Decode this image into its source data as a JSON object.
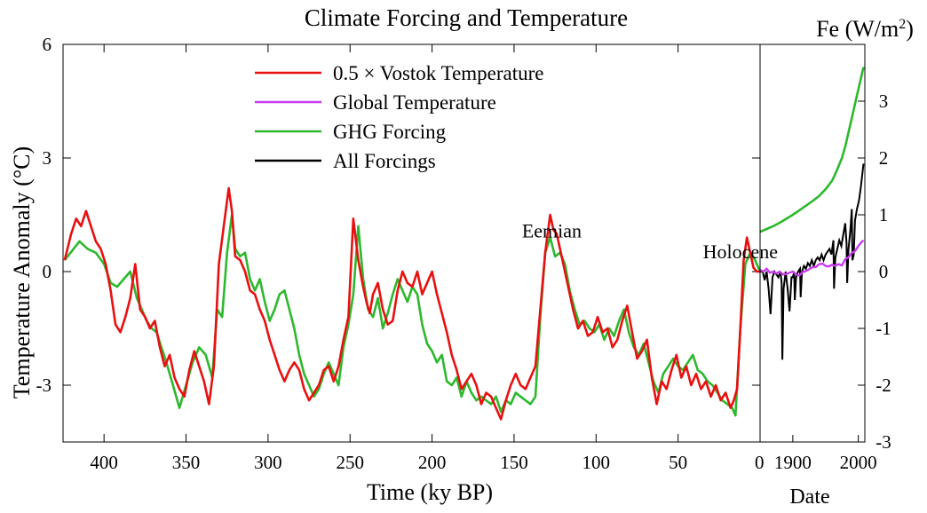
{
  "chart_data": {
    "type": "line",
    "title": "Climate Forcing and Temperature",
    "ylabel": "Temperature Anomaly (°C)",
    "ylabel_right": "Fe (W/m2)",
    "ylabel_right_main": "Fe (W/m",
    "ylabel_right_sup": "2",
    "ylabel_right_close": ")",
    "left_panel": {
      "xlabel": "Time (ky BP)",
      "xlim": [
        425,
        0
      ],
      "xticks": [
        400,
        350,
        300,
        250,
        200,
        150,
        100,
        50,
        0
      ],
      "xtick_labels": [
        "400",
        "350",
        "300",
        "250",
        "200",
        "150",
        "100",
        "50",
        "0"
      ],
      "ylim": [
        -4.5,
        6
      ],
      "yticks": [
        -3,
        0,
        3,
        6
      ],
      "ytick_labels": [
        "-3",
        "0",
        "3",
        "6"
      ]
    },
    "right_panel": {
      "xlabel": "Date",
      "xlim": [
        1850,
        2010
      ],
      "xticks": [
        1900,
        2000
      ],
      "xtick_labels": [
        "1900",
        "2000"
      ],
      "ylim": [
        -3,
        4
      ],
      "yticks": [
        -3,
        -2,
        -1,
        0,
        1,
        2,
        3
      ],
      "ytick_labels": [
        "-3",
        "-2",
        "-1",
        "0",
        "1",
        "2",
        "3"
      ]
    },
    "annotations": [
      {
        "text": "Eemian",
        "ky": 127,
        "temp": 0.9
      },
      {
        "text": "Holocene",
        "ky": 12,
        "temp": 0.35
      }
    ],
    "series": [
      {
        "name": "0.5 × Vostok Temperature",
        "color": "#e81010",
        "panel": "left",
        "x": [
          424,
          420,
          417,
          414,
          411,
          408,
          405,
          402,
          399,
          396,
          393,
          390,
          387,
          384,
          381,
          378,
          375,
          372,
          369,
          366,
          363,
          360,
          357,
          354,
          351,
          348,
          345,
          342,
          339,
          336,
          333,
          330,
          327,
          324,
          322,
          320,
          317,
          314,
          311,
          308,
          305,
          302,
          299,
          296,
          293,
          290,
          287,
          284,
          281,
          278,
          275,
          272,
          269,
          266,
          263,
          260,
          257,
          254,
          251,
          248,
          245,
          242,
          240,
          238,
          236,
          233,
          230,
          227,
          224,
          221,
          218,
          215,
          212,
          209,
          206,
          203,
          200,
          197,
          194,
          191,
          188,
          185,
          182,
          179,
          176,
          173,
          170,
          167,
          164,
          161,
          158,
          155,
          152,
          149,
          146,
          143,
          140,
          137,
          134,
          131,
          128,
          126,
          124,
          122,
          120,
          117,
          114,
          111,
          108,
          105,
          102,
          99,
          96,
          93,
          90,
          87,
          84,
          81,
          78,
          75,
          72,
          69,
          66,
          63,
          60,
          57,
          54,
          51,
          48,
          45,
          42,
          39,
          36,
          33,
          30,
          27,
          24,
          21,
          18,
          16,
          14,
          12,
          10,
          8,
          6,
          4,
          2,
          0
        ],
        "y": [
          0.3,
          1.0,
          1.4,
          1.2,
          1.6,
          1.2,
          0.8,
          0.6,
          0.2,
          -0.5,
          -1.4,
          -1.6,
          -1.2,
          -0.7,
          0.2,
          -1.0,
          -1.2,
          -1.5,
          -1.3,
          -2.0,
          -2.5,
          -2.2,
          -2.8,
          -3.1,
          -3.3,
          -2.6,
          -2.1,
          -2.5,
          -2.9,
          -3.5,
          -2.5,
          0.2,
          1.2,
          2.2,
          1.6,
          0.4,
          0.3,
          0.0,
          -0.5,
          -0.6,
          -1.0,
          -1.3,
          -1.8,
          -2.2,
          -2.6,
          -2.9,
          -2.6,
          -2.4,
          -2.6,
          -3.1,
          -3.4,
          -3.2,
          -3.0,
          -2.6,
          -2.5,
          -2.9,
          -2.5,
          -1.8,
          -1.2,
          1.4,
          0.3,
          -0.4,
          -0.8,
          -1.1,
          -0.6,
          -0.3,
          -1.0,
          -1.4,
          -1.3,
          -0.5,
          0.0,
          -0.3,
          -0.4,
          0.0,
          -0.6,
          -0.3,
          0.0,
          -0.6,
          -1.1,
          -1.6,
          -2.2,
          -2.6,
          -3.1,
          -2.9,
          -2.7,
          -3.0,
          -3.5,
          -3.2,
          -3.3,
          -3.6,
          -3.9,
          -3.4,
          -3.0,
          -2.7,
          -3.0,
          -3.1,
          -2.8,
          -2.5,
          -1.0,
          0.5,
          1.5,
          1.1,
          1.0,
          0.6,
          0.2,
          -0.4,
          -1.0,
          -1.5,
          -1.3,
          -1.7,
          -1.6,
          -1.2,
          -1.6,
          -1.5,
          -2.0,
          -1.8,
          -1.3,
          -0.9,
          -1.6,
          -2.3,
          -2.1,
          -1.8,
          -2.8,
          -3.5,
          -2.9,
          -3.1,
          -2.6,
          -2.2,
          -2.8,
          -2.5,
          -3.0,
          -2.7,
          -3.1,
          -2.9,
          -3.3,
          -3.0,
          -3.4,
          -3.2,
          -3.6,
          -3.4,
          -3.1,
          -1.5,
          0.3,
          0.9,
          0.5,
          0.1,
          0.0,
          0.0
        ]
      },
      {
        "name": "Global Temperature",
        "color": "#c83cf0",
        "panel": "right",
        "x": [
          1850,
          1855,
          1860,
          1865,
          1870,
          1875,
          1880,
          1885,
          1890,
          1895,
          1900,
          1905,
          1910,
          1915,
          1920,
          1925,
          1930,
          1935,
          1940,
          1945,
          1950,
          1955,
          1960,
          1965,
          1970,
          1975,
          1980,
          1985,
          1990,
          1995,
          2000,
          2005,
          2008
        ],
        "y": [
          0.03,
          0.0,
          0.05,
          -0.02,
          0.0,
          -0.03,
          0.0,
          -0.05,
          -0.04,
          -0.02,
          0.0,
          -0.05,
          -0.07,
          -0.01,
          0.01,
          0.04,
          0.08,
          0.08,
          0.13,
          0.14,
          0.1,
          0.09,
          0.12,
          0.1,
          0.13,
          0.11,
          0.22,
          0.25,
          0.33,
          0.36,
          0.45,
          0.52,
          0.55
        ]
      },
      {
        "name": "GHG Forcing",
        "color": "#2db82d",
        "panel": "both",
        "x": [
          424,
          415,
          410,
          405,
          400,
          396,
          392,
          388,
          384,
          380,
          377,
          374,
          371,
          368,
          365,
          362,
          358,
          354,
          350,
          346,
          342,
          338,
          334,
          331,
          328,
          325,
          322,
          320,
          317,
          314,
          311,
          308,
          305,
          302,
          299,
          296,
          293,
          290,
          287,
          284,
          281,
          278,
          275,
          272,
          269,
          266,
          263,
          260,
          257,
          254,
          251,
          248,
          245,
          242,
          239,
          236,
          233,
          230,
          227,
          224,
          221,
          218,
          215,
          212,
          209,
          206,
          203,
          200,
          197,
          194,
          191,
          188,
          185,
          182,
          179,
          176,
          173,
          170,
          167,
          164,
          161,
          158,
          155,
          152,
          149,
          146,
          143,
          140,
          137,
          134,
          131,
          128,
          125,
          122,
          119,
          116,
          113,
          110,
          107,
          104,
          101,
          98,
          95,
          92,
          89,
          86,
          83,
          80,
          77,
          74,
          71,
          68,
          65,
          62,
          59,
          56,
          53,
          50,
          47,
          44,
          41,
          38,
          35,
          32,
          29,
          26,
          23,
          20,
          17,
          15,
          12,
          9,
          6,
          3,
          0
        ],
        "y": [
          0.3,
          0.8,
          0.6,
          0.5,
          0.2,
          -0.3,
          -0.4,
          -0.2,
          0.0,
          -0.7,
          -1.0,
          -1.3,
          -1.5,
          -1.6,
          -2.0,
          -2.4,
          -3.0,
          -3.6,
          -3.0,
          -2.4,
          -2.0,
          -2.2,
          -2.8,
          -1.0,
          -1.2,
          0.5,
          1.5,
          0.6,
          0.4,
          0.5,
          -0.2,
          -0.5,
          -0.2,
          -0.8,
          -1.3,
          -1.0,
          -0.6,
          -0.5,
          -1.0,
          -1.5,
          -2.2,
          -2.7,
          -3.0,
          -3.3,
          -3.1,
          -2.7,
          -2.4,
          -2.7,
          -3.0,
          -2.0,
          -1.4,
          -0.6,
          1.2,
          -0.2,
          -1.0,
          -1.2,
          -0.7,
          -1.5,
          -1.1,
          -0.6,
          -0.2,
          -0.5,
          -0.8,
          -0.4,
          -0.6,
          -1.4,
          -1.9,
          -2.1,
          -2.4,
          -2.2,
          -2.9,
          -3.0,
          -2.8,
          -3.3,
          -2.9,
          -3.2,
          -3.4,
          -3.3,
          -3.4,
          -3.5,
          -3.3,
          -3.7,
          -3.4,
          -3.5,
          -3.2,
          -3.3,
          -3.4,
          -3.5,
          -3.3,
          -1.2,
          0.5,
          0.9,
          0.4,
          0.5,
          0.2,
          -0.5,
          -1.0,
          -1.4,
          -1.3,
          -1.5,
          -1.6,
          -1.4,
          -1.8,
          -1.5,
          -1.7,
          -1.3,
          -1.0,
          -1.6,
          -2.0,
          -2.2,
          -1.9,
          -2.4,
          -2.9,
          -3.2,
          -2.7,
          -2.5,
          -2.3,
          -2.5,
          -2.6,
          -2.4,
          -2.2,
          -2.6,
          -2.7,
          -2.9,
          -3.0,
          -3.2,
          -3.4,
          -3.5,
          -3.6,
          -3.8,
          -1.5,
          0.2,
          0.5,
          0.3,
          0.0
        ],
        "right_x": [
          1850,
          1860,
          1870,
          1880,
          1890,
          1900,
          1910,
          1920,
          1930,
          1940,
          1950,
          1960,
          1965,
          1970,
          1975,
          1980,
          1985,
          1990,
          1995,
          2000,
          2005,
          2008
        ],
        "right_y": [
          0.7,
          0.75,
          0.8,
          0.86,
          0.93,
          1.0,
          1.08,
          1.16,
          1.24,
          1.33,
          1.45,
          1.6,
          1.72,
          1.86,
          2.0,
          2.2,
          2.45,
          2.7,
          2.95,
          3.2,
          3.45,
          3.6
        ]
      },
      {
        "name": "All Forcings",
        "color": "#000000",
        "panel": "right",
        "x": [
          1850,
          1854,
          1857,
          1860,
          1863,
          1866,
          1869,
          1872,
          1875,
          1878,
          1881,
          1883,
          1884,
          1886,
          1889,
          1892,
          1895,
          1898,
          1900,
          1902,
          1903,
          1905,
          1908,
          1911,
          1912,
          1914,
          1917,
          1920,
          1923,
          1926,
          1929,
          1932,
          1935,
          1938,
          1941,
          1944,
          1947,
          1950,
          1953,
          1956,
          1959,
          1962,
          1963,
          1965,
          1968,
          1971,
          1974,
          1977,
          1980,
          1982,
          1983,
          1985,
          1988,
          1990,
          1991,
          1993,
          1995,
          1998,
          2001,
          2004,
          2008
        ],
        "y": [
          0.0,
          0.0,
          -0.15,
          0.0,
          -0.3,
          -0.75,
          -0.1,
          0.0,
          -0.05,
          -0.1,
          0.0,
          -0.2,
          -1.55,
          -0.3,
          0.0,
          -0.3,
          -0.7,
          -0.1,
          -0.1,
          0.0,
          -0.5,
          -0.1,
          0.0,
          0.05,
          -0.45,
          0.0,
          0.1,
          0.05,
          0.15,
          0.1,
          0.2,
          0.1,
          0.2,
          0.25,
          0.2,
          0.3,
          0.2,
          0.3,
          0.35,
          0.4,
          0.3,
          0.55,
          -0.3,
          0.25,
          0.4,
          0.55,
          0.45,
          0.65,
          0.85,
          0.5,
          -0.2,
          0.4,
          0.75,
          1.1,
          0.2,
          0.3,
          0.9,
          1.1,
          1.25,
          1.5,
          1.9
        ]
      }
    ]
  }
}
